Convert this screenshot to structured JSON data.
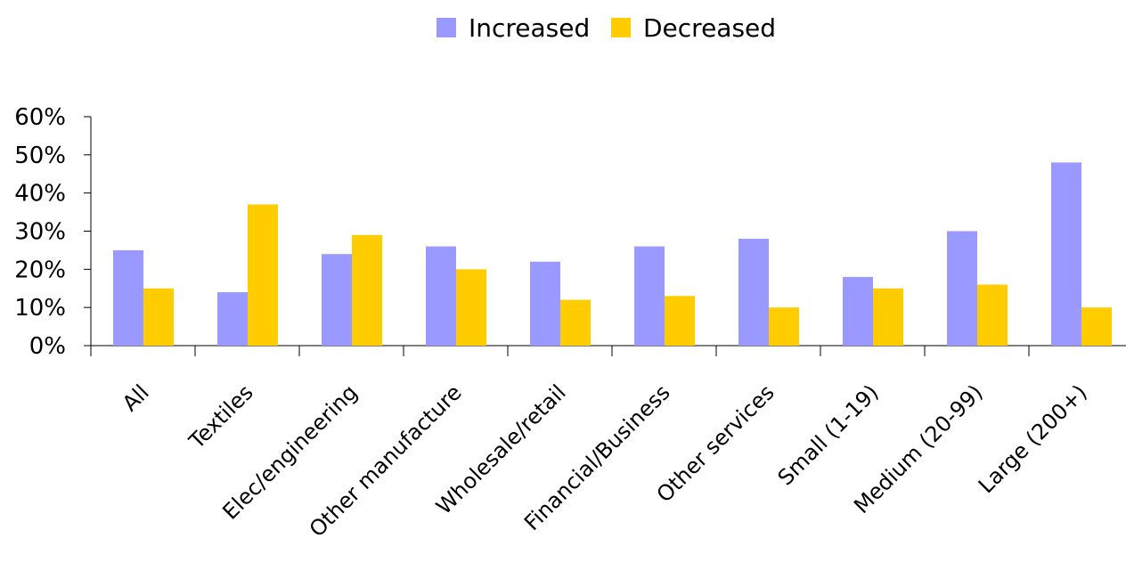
{
  "chart_data": {
    "type": "bar",
    "title": "",
    "xlabel": "",
    "ylabel": "",
    "categories": [
      "All",
      "Textiles",
      "Elec/engineering",
      "Other manufacture",
      "Wholesale/retail",
      "Financial/Business",
      "Other services",
      "Small (1-19)",
      "Medium (20-99)",
      "Large (200+)"
    ],
    "series": [
      {
        "name": "Increased",
        "color": "#9999ff",
        "values": [
          25,
          14,
          24,
          26,
          22,
          26,
          28,
          18,
          30,
          48
        ]
      },
      {
        "name": "Decreased",
        "color": "#ffcc00",
        "values": [
          15,
          37,
          29,
          20,
          12,
          13,
          10,
          15,
          16,
          10
        ]
      }
    ],
    "ylim": [
      0,
      60
    ],
    "y_ticks": [
      0,
      10,
      20,
      30,
      40,
      50,
      60
    ],
    "y_tick_format": "{v}%",
    "grid": false,
    "legend_position": "top-center"
  }
}
